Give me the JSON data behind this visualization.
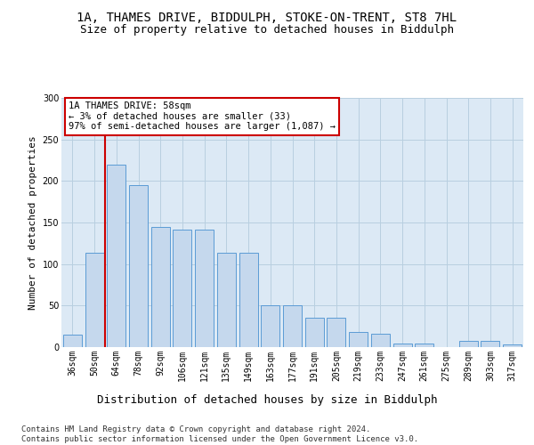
{
  "title_line1": "1A, THAMES DRIVE, BIDDULPH, STOKE-ON-TRENT, ST8 7HL",
  "title_line2": "Size of property relative to detached houses in Biddulph",
  "xlabel": "Distribution of detached houses by size in Biddulph",
  "ylabel": "Number of detached properties",
  "categories": [
    "36sqm",
    "50sqm",
    "64sqm",
    "78sqm",
    "92sqm",
    "106sqm",
    "121sqm",
    "135sqm",
    "149sqm",
    "163sqm",
    "177sqm",
    "191sqm",
    "205sqm",
    "219sqm",
    "233sqm",
    "247sqm",
    "261sqm",
    "275sqm",
    "289sqm",
    "303sqm",
    "317sqm"
  ],
  "values": [
    15,
    114,
    220,
    195,
    145,
    141,
    141,
    114,
    114,
    50,
    50,
    35,
    35,
    18,
    16,
    4,
    4,
    0,
    8,
    8,
    3
  ],
  "bar_color": "#c5d8ed",
  "bar_edge_color": "#5b9bd5",
  "vline_color": "#cc0000",
  "vline_pos": 1.5,
  "annotation_text": "1A THAMES DRIVE: 58sqm\n← 3% of detached houses are smaller (33)\n97% of semi-detached houses are larger (1,087) →",
  "annotation_box_edge_color": "#cc0000",
  "ylim_max": 300,
  "yticks": [
    0,
    50,
    100,
    150,
    200,
    250,
    300
  ],
  "footer_text": "Contains HM Land Registry data © Crown copyright and database right 2024.\nContains public sector information licensed under the Open Government Licence v3.0.",
  "plot_bg_color": "#dce9f5",
  "grid_color": "#b8cfe0",
  "title_fontsize": 10,
  "subtitle_fontsize": 9,
  "ylabel_fontsize": 8,
  "xlabel_fontsize": 9,
  "tick_fontsize": 7,
  "annot_fontsize": 7.5,
  "footer_fontsize": 6.5
}
